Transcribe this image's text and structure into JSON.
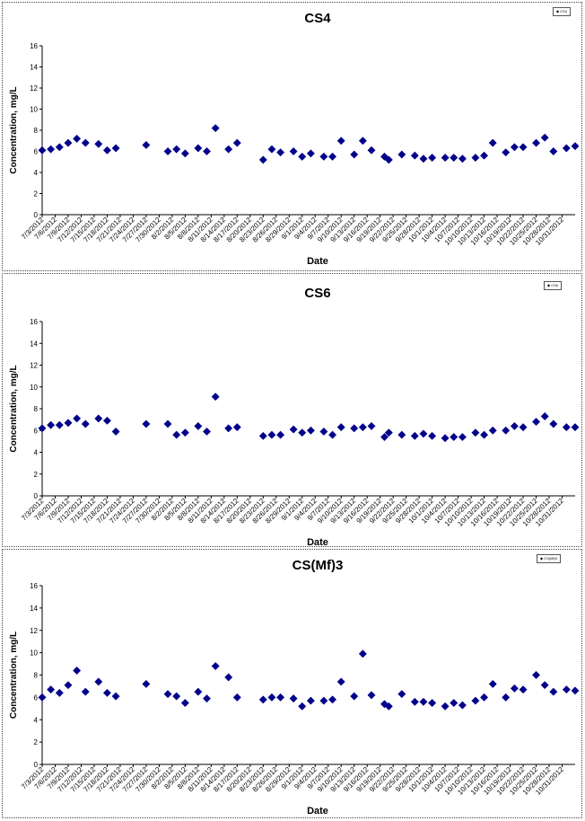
{
  "chart_data": [
    {
      "type": "scatter",
      "title": "CS4",
      "xlabel": "Date",
      "ylabel": "Concentration, mg/L",
      "ylim": [
        0,
        16
      ],
      "yticks": [
        "0",
        "2",
        "4",
        "6",
        "8",
        "10",
        "12",
        "14",
        "16"
      ],
      "xticks": [
        "7/3/2012",
        "7/6/2012",
        "7/9/2012",
        "7/12/2012",
        "7/15/2012",
        "7/18/2012",
        "7/21/2012",
        "7/24/2012",
        "7/27/2012",
        "7/30/2012",
        "8/2/2012",
        "8/5/2012",
        "8/8/2012",
        "8/11/2012",
        "8/14/2012",
        "8/17/2012",
        "8/20/2012",
        "8/23/2012",
        "8/26/2012",
        "8/29/2012",
        "9/1/2012",
        "9/4/2012",
        "9/7/2012",
        "9/10/2012",
        "9/13/2012",
        "9/16/2012",
        "9/19/2012",
        "9/22/2012",
        "9/25/2012",
        "9/28/2012",
        "10/1/2012",
        "10/4/2012",
        "10/7/2012",
        "10/10/2012",
        "10/13/2012",
        "10/16/2012",
        "10/19/2012",
        "10/22/2012",
        "10/25/2012",
        "10/28/2012",
        "10/31/2012"
      ],
      "grid": false,
      "legend_position": "top-right",
      "series": [
        {
          "name": "CS4",
          "marker_color": "#00008B",
          "points": [
            [
              "7/3/2012",
              6.1
            ],
            [
              "7/5/2012",
              6.2
            ],
            [
              "7/7/2012",
              6.4
            ],
            [
              "7/9/2012",
              6.8
            ],
            [
              "7/11/2012",
              7.2
            ],
            [
              "7/13/2012",
              6.8
            ],
            [
              "7/16/2012",
              6.7
            ],
            [
              "7/18/2012",
              6.1
            ],
            [
              "7/20/2012",
              6.3
            ],
            [
              "7/27/2012",
              6.6
            ],
            [
              "8/1/2012",
              6.0
            ],
            [
              "8/3/2012",
              6.2
            ],
            [
              "8/5/2012",
              5.8
            ],
            [
              "8/8/2012",
              6.3
            ],
            [
              "8/10/2012",
              6.0
            ],
            [
              "8/12/2012",
              8.2
            ],
            [
              "8/15/2012",
              6.2
            ],
            [
              "8/17/2012",
              6.8
            ],
            [
              "8/23/2012",
              5.2
            ],
            [
              "8/25/2012",
              6.2
            ],
            [
              "8/27/2012",
              5.9
            ],
            [
              "8/30/2012",
              6.0
            ],
            [
              "9/1/2012",
              5.5
            ],
            [
              "9/3/2012",
              5.8
            ],
            [
              "9/6/2012",
              5.5
            ],
            [
              "9/8/2012",
              5.5
            ],
            [
              "9/10/2012",
              7.0
            ],
            [
              "9/13/2012",
              5.7
            ],
            [
              "9/15/2012",
              7.0
            ],
            [
              "9/17/2012",
              6.1
            ],
            [
              "9/20/2012",
              5.5
            ],
            [
              "9/21/2012",
              5.2
            ],
            [
              "9/24/2012",
              5.7
            ],
            [
              "9/27/2012",
              5.6
            ],
            [
              "9/29/2012",
              5.3
            ],
            [
              "10/1/2012",
              5.4
            ],
            [
              "10/4/2012",
              5.4
            ],
            [
              "10/6/2012",
              5.4
            ],
            [
              "10/8/2012",
              5.3
            ],
            [
              "10/11/2012",
              5.4
            ],
            [
              "10/13/2012",
              5.6
            ],
            [
              "10/15/2012",
              6.8
            ],
            [
              "10/18/2012",
              5.9
            ],
            [
              "10/20/2012",
              6.4
            ],
            [
              "10/22/2012",
              6.4
            ],
            [
              "10/25/2012",
              6.8
            ],
            [
              "10/27/2012",
              7.3
            ],
            [
              "10/29/2012",
              6.0
            ],
            [
              "11/1/2012",
              6.3
            ],
            [
              "11/3/2012",
              6.5
            ]
          ]
        }
      ]
    },
    {
      "type": "scatter",
      "title": "CS6",
      "xlabel": "Date",
      "ylabel": "Concentration, mg/L",
      "ylim": [
        0,
        16
      ],
      "yticks": [
        "0",
        "2",
        "4",
        "6",
        "8",
        "10",
        "12",
        "14",
        "16"
      ],
      "xticks": [
        "7/3/2012",
        "7/6/2012",
        "7/9/2012",
        "7/12/2012",
        "7/15/2012",
        "7/18/2012",
        "7/21/2012",
        "7/24/2012",
        "7/27/2012",
        "7/30/2012",
        "8/2/2012",
        "8/5/2012",
        "8/8/2012",
        "8/11/2012",
        "8/14/2012",
        "8/17/2012",
        "8/20/2012",
        "8/23/2012",
        "8/26/2012",
        "8/29/2012",
        "9/1/2012",
        "9/4/2012",
        "9/7/2012",
        "9/10/2012",
        "9/13/2012",
        "9/16/2012",
        "9/19/2012",
        "9/22/2012",
        "9/25/2012",
        "9/28/2012",
        "10/1/2012",
        "10/4/2012",
        "10/7/2012",
        "10/10/2012",
        "10/13/2012",
        "10/16/2012",
        "10/19/2012",
        "10/22/2012",
        "10/25/2012",
        "10/28/2012",
        "10/31/2012"
      ],
      "grid": false,
      "legend_position": "top-right",
      "series": [
        {
          "name": "CS6",
          "marker_color": "#00008B",
          "points": [
            [
              "7/3/2012",
              6.2
            ],
            [
              "7/5/2012",
              6.5
            ],
            [
              "7/7/2012",
              6.5
            ],
            [
              "7/9/2012",
              6.7
            ],
            [
              "7/11/2012",
              7.1
            ],
            [
              "7/13/2012",
              6.6
            ],
            [
              "7/16/2012",
              7.1
            ],
            [
              "7/18/2012",
              6.9
            ],
            [
              "7/20/2012",
              5.9
            ],
            [
              "7/27/2012",
              6.6
            ],
            [
              "8/1/2012",
              6.6
            ],
            [
              "8/3/2012",
              5.6
            ],
            [
              "8/5/2012",
              5.8
            ],
            [
              "8/8/2012",
              6.4
            ],
            [
              "8/10/2012",
              5.9
            ],
            [
              "8/12/2012",
              9.1
            ],
            [
              "8/15/2012",
              6.2
            ],
            [
              "8/17/2012",
              6.3
            ],
            [
              "8/23/2012",
              5.5
            ],
            [
              "8/25/2012",
              5.6
            ],
            [
              "8/27/2012",
              5.6
            ],
            [
              "8/30/2012",
              6.1
            ],
            [
              "9/1/2012",
              5.8
            ],
            [
              "9/3/2012",
              6.0
            ],
            [
              "9/6/2012",
              5.9
            ],
            [
              "9/8/2012",
              5.6
            ],
            [
              "9/10/2012",
              6.3
            ],
            [
              "9/13/2012",
              6.2
            ],
            [
              "9/15/2012",
              6.3
            ],
            [
              "9/17/2012",
              6.4
            ],
            [
              "9/20/2012",
              5.4
            ],
            [
              "9/21/2012",
              5.8
            ],
            [
              "9/24/2012",
              5.6
            ],
            [
              "9/27/2012",
              5.5
            ],
            [
              "9/29/2012",
              5.7
            ],
            [
              "10/1/2012",
              5.5
            ],
            [
              "10/4/2012",
              5.3
            ],
            [
              "10/6/2012",
              5.4
            ],
            [
              "10/8/2012",
              5.4
            ],
            [
              "10/11/2012",
              5.8
            ],
            [
              "10/13/2012",
              5.6
            ],
            [
              "10/15/2012",
              6.0
            ],
            [
              "10/18/2012",
              6.0
            ],
            [
              "10/20/2012",
              6.4
            ],
            [
              "10/22/2012",
              6.3
            ],
            [
              "10/25/2012",
              6.8
            ],
            [
              "10/27/2012",
              7.3
            ],
            [
              "10/29/2012",
              6.6
            ],
            [
              "11/1/2012",
              6.3
            ],
            [
              "11/3/2012",
              6.3
            ]
          ]
        }
      ]
    },
    {
      "type": "scatter",
      "title": "CS(Mf)3",
      "xlabel": "Date",
      "ylabel": "Concentration, mg/L",
      "ylim": [
        0,
        16
      ],
      "yticks": [
        "0",
        "2",
        "4",
        "6",
        "8",
        "10",
        "12",
        "14",
        "16"
      ],
      "xticks": [
        "7/3/2012",
        "7/6/2012",
        "7/9/2012",
        "7/12/2012",
        "7/15/2012",
        "7/18/2012",
        "7/21/2012",
        "7/24/2012",
        "7/27/2012",
        "7/30/2012",
        "8/2/2012",
        "8/5/2012",
        "8/8/2012",
        "8/11/2012",
        "8/14/2012",
        "8/17/2012",
        "8/20/2012",
        "8/23/2012",
        "8/26/2012",
        "8/29/2012",
        "9/1/2012",
        "9/4/2012",
        "9/7/2012",
        "9/10/2012",
        "9/13/2012",
        "9/16/2012",
        "9/19/2012",
        "9/22/2012",
        "9/25/2012",
        "9/28/2012",
        "10/1/2012",
        "10/4/2012",
        "10/7/2012",
        "10/10/2012",
        "10/13/2012",
        "10/16/2012",
        "10/19/2012",
        "10/22/2012",
        "10/25/2012",
        "10/28/2012",
        "10/31/2012"
      ],
      "grid": false,
      "legend_position": "top-right",
      "series": [
        {
          "name": "CS(Mf)3",
          "marker_color": "#00008B",
          "points": [
            [
              "7/3/2012",
              6.0
            ],
            [
              "7/5/2012",
              6.7
            ],
            [
              "7/7/2012",
              6.4
            ],
            [
              "7/9/2012",
              7.1
            ],
            [
              "7/11/2012",
              8.4
            ],
            [
              "7/13/2012",
              6.5
            ],
            [
              "7/16/2012",
              7.4
            ],
            [
              "7/18/2012",
              6.4
            ],
            [
              "7/20/2012",
              6.1
            ],
            [
              "7/27/2012",
              7.2
            ],
            [
              "8/1/2012",
              6.3
            ],
            [
              "8/3/2012",
              6.1
            ],
            [
              "8/5/2012",
              5.5
            ],
            [
              "8/8/2012",
              6.5
            ],
            [
              "8/10/2012",
              5.9
            ],
            [
              "8/12/2012",
              8.8
            ],
            [
              "8/15/2012",
              7.8
            ],
            [
              "8/17/2012",
              6.0
            ],
            [
              "8/23/2012",
              5.8
            ],
            [
              "8/25/2012",
              6.0
            ],
            [
              "8/27/2012",
              6.0
            ],
            [
              "8/30/2012",
              5.9
            ],
            [
              "9/1/2012",
              5.2
            ],
            [
              "9/3/2012",
              5.7
            ],
            [
              "9/6/2012",
              5.7
            ],
            [
              "9/8/2012",
              5.8
            ],
            [
              "9/10/2012",
              7.4
            ],
            [
              "9/13/2012",
              6.1
            ],
            [
              "9/15/2012",
              9.9
            ],
            [
              "9/17/2012",
              6.2
            ],
            [
              "9/20/2012",
              5.4
            ],
            [
              "9/21/2012",
              5.2
            ],
            [
              "9/24/2012",
              6.3
            ],
            [
              "9/27/2012",
              5.6
            ],
            [
              "9/29/2012",
              5.6
            ],
            [
              "10/1/2012",
              5.5
            ],
            [
              "10/4/2012",
              5.2
            ],
            [
              "10/6/2012",
              5.5
            ],
            [
              "10/8/2012",
              5.3
            ],
            [
              "10/11/2012",
              5.7
            ],
            [
              "10/13/2012",
              6.0
            ],
            [
              "10/15/2012",
              7.2
            ],
            [
              "10/18/2012",
              6.0
            ],
            [
              "10/20/2012",
              6.8
            ],
            [
              "10/22/2012",
              6.7
            ],
            [
              "10/25/2012",
              8.0
            ],
            [
              "10/27/2012",
              7.1
            ],
            [
              "10/29/2012",
              6.5
            ],
            [
              "11/1/2012",
              6.7
            ],
            [
              "11/3/2012",
              6.6
            ]
          ]
        }
      ]
    }
  ]
}
